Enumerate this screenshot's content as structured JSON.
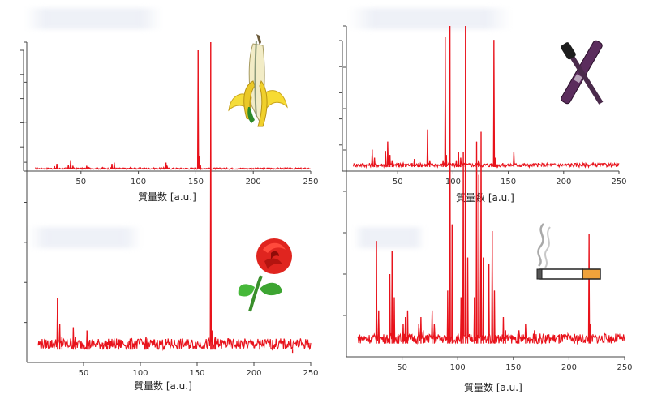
{
  "chart_data": [
    {
      "type": "line",
      "title": "",
      "xlabel": "質量数 [a.u.]",
      "xlim": [
        0,
        250
      ],
      "xticks": [
        50,
        100,
        150,
        200,
        250
      ],
      "ylim": [
        0,
        100
      ],
      "color": "#e8121b",
      "icon": "banana",
      "baseline": 1.5,
      "noise": 1.2,
      "peaks": [
        [
          27,
          4
        ],
        [
          29,
          6
        ],
        [
          39,
          5
        ],
        [
          41,
          9
        ],
        [
          43,
          4
        ],
        [
          55,
          4
        ],
        [
          57,
          3
        ],
        [
          67,
          2
        ],
        [
          69,
          3
        ],
        [
          77,
          6
        ],
        [
          79,
          7
        ],
        [
          93,
          3
        ],
        [
          95,
          2
        ],
        [
          122,
          3
        ],
        [
          124,
          7
        ],
        [
          125,
          4
        ],
        [
          150,
          3
        ],
        [
          152,
          100
        ],
        [
          153,
          12
        ],
        [
          154,
          5
        ]
      ]
    },
    {
      "type": "line",
      "title": "",
      "xlabel": "質量数 [a.u.]",
      "xlim": [
        0,
        250
      ],
      "xticks": [
        50,
        100,
        150,
        200,
        250
      ],
      "ylim": [
        0,
        100
      ],
      "color": "#e8121b",
      "icon": "mascara",
      "baseline": 3,
      "noise": 3,
      "peaks": [
        [
          27,
          16
        ],
        [
          29,
          10
        ],
        [
          39,
          15
        ],
        [
          41,
          22
        ],
        [
          43,
          12
        ],
        [
          45,
          8
        ],
        [
          51,
          6
        ],
        [
          55,
          6
        ],
        [
          57,
          5
        ],
        [
          63,
          6
        ],
        [
          65,
          9
        ],
        [
          69,
          6
        ],
        [
          77,
          31
        ],
        [
          79,
          8
        ],
        [
          91,
          8
        ],
        [
          93,
          100
        ],
        [
          94,
          12
        ],
        [
          103,
          8
        ],
        [
          105,
          14
        ],
        [
          107,
          10
        ],
        [
          111,
          6
        ],
        [
          121,
          6
        ],
        [
          123,
          8
        ],
        [
          135,
          6
        ],
        [
          137,
          98
        ],
        [
          138,
          10
        ],
        [
          155,
          14
        ]
      ]
    },
    {
      "type": "line",
      "title": "",
      "xlabel": "質量数 [a.u.]",
      "xlim": [
        0,
        250
      ],
      "xticks": [
        50,
        100,
        150,
        200,
        250
      ],
      "ylim": [
        0,
        100
      ],
      "color": "#e8121b",
      "icon": "rose",
      "baseline": 4,
      "noise": 3.5,
      "peaks": [
        [
          27,
          20
        ],
        [
          29,
          12
        ],
        [
          31,
          8
        ],
        [
          41,
          11
        ],
        [
          43,
          8
        ],
        [
          53,
          10
        ],
        [
          55,
          6
        ],
        [
          67,
          6
        ],
        [
          71,
          5
        ],
        [
          81,
          6
        ],
        [
          91,
          7
        ],
        [
          93,
          6
        ],
        [
          105,
          8
        ],
        [
          107,
          6
        ],
        [
          121,
          5
        ],
        [
          133,
          6
        ],
        [
          135,
          4
        ],
        [
          162,
          100
        ],
        [
          163,
          10
        ],
        [
          166,
          8
        ],
        [
          205,
          6
        ],
        [
          221,
          4
        ],
        [
          234,
          3
        ]
      ]
    },
    {
      "type": "line",
      "title": "",
      "xlabel": "質量数 [a.u.]",
      "xlim": [
        0,
        250
      ],
      "xticks": [
        50,
        100,
        150,
        200,
        250
      ],
      "ylim": [
        0,
        100
      ],
      "color": "#e8121b",
      "icon": "cigarette",
      "baseline": 4,
      "noise": 3,
      "peaks": [
        [
          27,
          35
        ],
        [
          29,
          14
        ],
        [
          39,
          25
        ],
        [
          41,
          32
        ],
        [
          43,
          18
        ],
        [
          51,
          10
        ],
        [
          53,
          12
        ],
        [
          55,
          14
        ],
        [
          65,
          10
        ],
        [
          67,
          12
        ],
        [
          69,
          8
        ],
        [
          77,
          14
        ],
        [
          79,
          10
        ],
        [
          91,
          20
        ],
        [
          93,
          100
        ],
        [
          95,
          40
        ],
        [
          103,
          18
        ],
        [
          105,
          62
        ],
        [
          107,
          100
        ],
        [
          109,
          30
        ],
        [
          115,
          18
        ],
        [
          117,
          65
        ],
        [
          119,
          55
        ],
        [
          121,
          68
        ],
        [
          123,
          30
        ],
        [
          128,
          28
        ],
        [
          131,
          38
        ],
        [
          133,
          20
        ],
        [
          141,
          12
        ],
        [
          143,
          8
        ],
        [
          155,
          8
        ],
        [
          161,
          10
        ],
        [
          169,
          8
        ],
        [
          179,
          6
        ],
        [
          191,
          6
        ],
        [
          205,
          5
        ],
        [
          218,
          37
        ],
        [
          219,
          10
        ]
      ]
    }
  ]
}
